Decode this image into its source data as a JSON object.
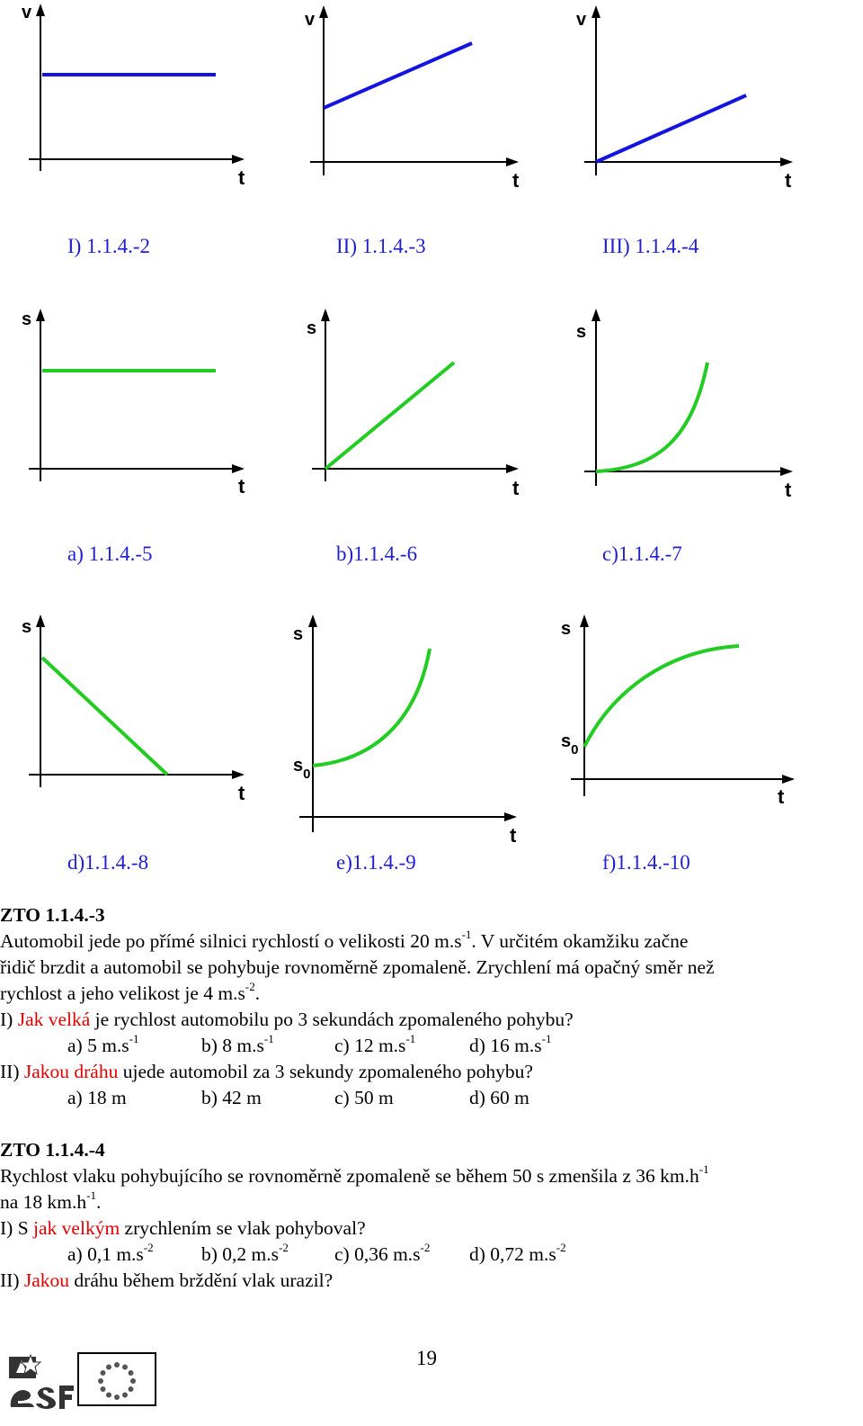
{
  "colors": {
    "velocity_line": "#1414e0",
    "distance_line": "#22cc22",
    "caption": "#1f1fd0",
    "highlight": "#e00000"
  },
  "row1": {
    "graphs": [
      {
        "y_label": "v",
        "x_label": "t",
        "shape": "constant",
        "caption": "I) 1.1.4.-2"
      },
      {
        "y_label": "v",
        "x_label": "t",
        "shape": "linear-offset",
        "caption": "II) 1.1.4.-3"
      },
      {
        "y_label": "v",
        "x_label": "t",
        "shape": "linear-origin",
        "caption": "III) 1.1.4.-4"
      }
    ]
  },
  "row2": {
    "graphs": [
      {
        "y_label": "s",
        "x_label": "t",
        "shape": "constant",
        "caption": "a) 1.1.4.-5"
      },
      {
        "y_label": "s",
        "x_label": "t",
        "shape": "linear-origin",
        "caption": "b)1.1.4.-6"
      },
      {
        "y_label": "s",
        "x_label": "t",
        "shape": "parabola-origin",
        "caption": "c)1.1.4.-7"
      }
    ]
  },
  "row3": {
    "graphs": [
      {
        "y_label": "s",
        "x_label": "t",
        "shape": "decreasing",
        "caption": "d)1.1.4.-8"
      },
      {
        "y_label": "s",
        "x_label": "t",
        "s0_label": "s",
        "s0_sub": "0",
        "shape": "parabola-offset",
        "caption": "e)1.1.4.-9"
      },
      {
        "y_label": "s",
        "x_label": "t",
        "s0_label": "s",
        "s0_sub": "0",
        "shape": "decelerating-offset",
        "caption": "f)1.1.4.-10"
      }
    ]
  },
  "zto3": {
    "heading": "ZTO 1.1.4.-3",
    "p1_a": "Automobil jede po přímé silnici rychlostí o velikosti 20 m.s",
    "p1_a_sup": "-1",
    "p1_b": ". V určitém okamžiku začne",
    "p2": "řidič brzdit a automobil se pohybuje rovnoměrně zpomaleně. Zrychlení má opačný směr než",
    "p3_a": "rychlost a jeho velikost je 4 m.s",
    "p3_sup": "-2",
    "p3_b": ".",
    "q1_pre": "I) ",
    "q1_red": "Jak velká",
    "q1_post": " je rychlost automobilu po 3 sekundách zpomaleného pohybu?",
    "q1_opts": [
      {
        "t": "a) 5 m.s",
        "sup": "-1"
      },
      {
        "t": "b) 8 m.s",
        "sup": "-1"
      },
      {
        "t": "c) 12 m.s",
        "sup": "-1"
      },
      {
        "t": "d) 16 m.s",
        "sup": "-1"
      }
    ],
    "q2_pre": "II) ",
    "q2_red": "Jakou dráhu",
    "q2_post": " ujede automobil za 3 sekundy zpomaleného pohybu?",
    "q2_opts": [
      "a) 18 m",
      "b) 42 m",
      "c) 50 m",
      "d) 60 m"
    ]
  },
  "zto4": {
    "heading": "ZTO 1.1.4.-4",
    "p1_a": "Rychlost vlaku pohybujícího se rovnoměrně zpomaleně se během 50 s zmenšila z 36 km.h",
    "p1_sup": "-1",
    "p2_a": "na 18 km.h",
    "p2_sup": "-1",
    "p2_b": ".",
    "q1_pre": "I) S ",
    "q1_red": "jak velkým",
    "q1_post": " zrychlením se vlak pohyboval?",
    "q1_opts": [
      {
        "t": "a) 0,1 m.s",
        "sup": "-2"
      },
      {
        "t": "b) 0,2 m.s",
        "sup": "-2"
      },
      {
        "t": "c) 0,36 m.s",
        "sup": "-2"
      },
      {
        "t": "d) 0,72 m.s",
        "sup": "-2"
      }
    ],
    "q2_pre": "II) ",
    "q2_red": "Jakou",
    "q2_post": " dráhu během brždění vlak urazil?"
  },
  "page_number": "19"
}
